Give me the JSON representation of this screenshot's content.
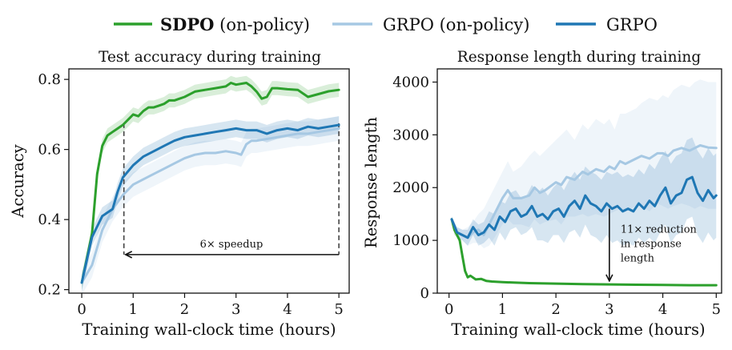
{
  "legend": [
    {
      "label_bold": "SDPO",
      "label": " (on-policy)",
      "color": "#2ca02c"
    },
    {
      "label_bold": "",
      "label": "GRPO (on-policy)",
      "color": "#a6c8e3"
    },
    {
      "label_bold": "",
      "label": "GRPO",
      "color": "#1f77b4"
    }
  ],
  "chart_data": [
    {
      "type": "line",
      "title": "Test accuracy during training",
      "xlabel": "Training wall-clock time (hours)",
      "ylabel": "Accuracy",
      "xlim": [
        -0.25,
        5.2
      ],
      "ylim": [
        0.19,
        0.83
      ],
      "xticks": [
        0,
        1,
        2,
        3,
        4,
        5
      ],
      "xtick_labels": [
        "0",
        "1",
        "2",
        "3",
        "4",
        "5"
      ],
      "yticks": [
        0.2,
        0.4,
        0.6,
        0.8
      ],
      "ytick_labels": [
        "0.2",
        "0.4",
        "0.6",
        "0.8"
      ],
      "annotation": {
        "text": "6× speedup",
        "arrow_from_x": 5.0,
        "arrow_to_x": 0.82,
        "y": 0.3,
        "vlines_x": [
          0.82,
          5.0
        ]
      },
      "series": [
        {
          "name": "SDPO (on-policy)",
          "color": "#2ca02c",
          "x": [
            0,
            0.1,
            0.2,
            0.3,
            0.4,
            0.5,
            0.6,
            0.7,
            0.8,
            0.9,
            1.0,
            1.1,
            1.2,
            1.3,
            1.4,
            1.5,
            1.6,
            1.7,
            1.8,
            1.9,
            2.0,
            2.2,
            2.4,
            2.6,
            2.8,
            2.9,
            3.0,
            3.2,
            3.3,
            3.4,
            3.5,
            3.6,
            3.7,
            3.8,
            4.0,
            4.2,
            4.3,
            4.4,
            4.6,
            4.8,
            5.0
          ],
          "y": [
            0.22,
            0.29,
            0.36,
            0.53,
            0.61,
            0.64,
            0.65,
            0.66,
            0.67,
            0.685,
            0.7,
            0.695,
            0.71,
            0.72,
            0.72,
            0.725,
            0.73,
            0.74,
            0.74,
            0.745,
            0.75,
            0.765,
            0.77,
            0.775,
            0.78,
            0.79,
            0.785,
            0.79,
            0.78,
            0.765,
            0.745,
            0.75,
            0.775,
            0.775,
            0.772,
            0.77,
            0.76,
            0.75,
            0.758,
            0.766,
            0.77
          ],
          "band": 0.02
        },
        {
          "name": "GRPO (on-policy)",
          "color": "#a6c8e3",
          "x": [
            0,
            0.2,
            0.4,
            0.6,
            0.8,
            1.0,
            1.2,
            1.4,
            1.6,
            1.8,
            2.0,
            2.2,
            2.4,
            2.6,
            2.8,
            3.0,
            3.1,
            3.2,
            3.3,
            3.4,
            3.6,
            3.8,
            4.0,
            4.2,
            4.4,
            4.6,
            4.8,
            5.0
          ],
          "y": [
            0.22,
            0.27,
            0.37,
            0.43,
            0.47,
            0.5,
            0.515,
            0.53,
            0.545,
            0.56,
            0.575,
            0.585,
            0.59,
            0.59,
            0.595,
            0.59,
            0.585,
            0.615,
            0.625,
            0.625,
            0.63,
            0.635,
            0.64,
            0.645,
            0.645,
            0.65,
            0.655,
            0.66
          ],
          "band": 0.035
        },
        {
          "name": "GRPO",
          "color": "#1f77b4",
          "x": [
            0,
            0.2,
            0.4,
            0.5,
            0.6,
            0.7,
            0.8,
            1.0,
            1.2,
            1.4,
            1.6,
            1.8,
            2.0,
            2.2,
            2.4,
            2.6,
            2.8,
            3.0,
            3.2,
            3.4,
            3.6,
            3.8,
            4.0,
            4.2,
            4.4,
            4.6,
            4.8,
            5.0
          ],
          "y": [
            0.22,
            0.35,
            0.41,
            0.42,
            0.43,
            0.48,
            0.52,
            0.555,
            0.58,
            0.595,
            0.61,
            0.625,
            0.635,
            0.64,
            0.645,
            0.65,
            0.655,
            0.66,
            0.655,
            0.655,
            0.645,
            0.655,
            0.66,
            0.655,
            0.665,
            0.66,
            0.665,
            0.67
          ],
          "band": 0.025
        }
      ]
    },
    {
      "type": "line",
      "title": "Response length during training",
      "xlabel": "Training wall-clock time (hours)",
      "ylabel": "Response length",
      "xlim": [
        -0.22,
        5.1
      ],
      "ylim": [
        0,
        4250
      ],
      "xticks": [
        0,
        1,
        2,
        3,
        4,
        5
      ],
      "xtick_labels": [
        "0",
        "1",
        "2",
        "3",
        "4",
        "5"
      ],
      "yticks": [
        0,
        1000,
        2000,
        3000,
        4000
      ],
      "ytick_labels": [
        "0",
        "1000",
        "2000",
        "3000",
        "4000"
      ],
      "annotation": {
        "text_lines": [
          "11× reduction",
          "in response",
          "length"
        ],
        "arrow_x": 3.0,
        "arrow_from_y": 1600,
        "arrow_to_y": 200
      },
      "series": [
        {
          "name": "SDPO (on-policy)",
          "color": "#2ca02c",
          "x": [
            0.05,
            0.1,
            0.15,
            0.2,
            0.25,
            0.3,
            0.35,
            0.4,
            0.5,
            0.6,
            0.7,
            0.8,
            1.0,
            1.2,
            1.5,
            2.0,
            2.5,
            3.0,
            3.5,
            4.0,
            4.5,
            5.0
          ],
          "y": [
            1400,
            1200,
            1100,
            1000,
            700,
            420,
            300,
            330,
            260,
            270,
            230,
            220,
            210,
            200,
            190,
            180,
            170,
            165,
            160,
            155,
            150,
            150
          ],
          "band_upper": [
            1450,
            1300,
            1150,
            1050,
            750,
            460,
            330,
            350,
            280,
            290,
            250,
            240,
            225,
            215,
            205,
            195,
            185,
            178,
            172,
            166,
            160,
            160
          ],
          "band_lower": [
            1350,
            1100,
            1050,
            950,
            650,
            380,
            270,
            310,
            240,
            250,
            210,
            200,
            195,
            185,
            175,
            165,
            155,
            152,
            148,
            144,
            140,
            140
          ]
        },
        {
          "name": "GRPO (on-policy)",
          "color": "#a6c8e3",
          "x": [
            0.05,
            0.15,
            0.25,
            0.35,
            0.45,
            0.55,
            0.65,
            0.75,
            0.85,
            1.0,
            1.1,
            1.2,
            1.35,
            1.5,
            1.6,
            1.7,
            1.8,
            2.0,
            2.1,
            2.2,
            2.35,
            2.5,
            2.6,
            2.75,
            2.9,
            3.0,
            3.1,
            3.2,
            3.3,
            3.5,
            3.6,
            3.75,
            3.9,
            4.0,
            4.1,
            4.2,
            4.35,
            4.5,
            4.6,
            4.7,
            4.85,
            5.0
          ],
          "y": [
            1400,
            1150,
            1100,
            1050,
            1150,
            1200,
            1100,
            1300,
            1500,
            1800,
            1950,
            1800,
            1800,
            1850,
            2000,
            1900,
            1950,
            2100,
            2050,
            2200,
            2150,
            2300,
            2250,
            2350,
            2300,
            2400,
            2350,
            2500,
            2450,
            2550,
            2600,
            2550,
            2650,
            2650,
            2600,
            2700,
            2750,
            2700,
            2750,
            2800,
            2760,
            2750
          ],
          "band_upper": [
            1450,
            1250,
            1200,
            1250,
            1350,
            1500,
            1600,
            1800,
            2000,
            2300,
            2500,
            2300,
            2400,
            2600,
            2700,
            2600,
            2700,
            2900,
            3000,
            3100,
            2900,
            3200,
            3100,
            3300,
            3200,
            3300,
            3100,
            3400,
            3400,
            3500,
            3600,
            3700,
            3650,
            3750,
            3700,
            3850,
            3950,
            3900,
            4000,
            4050,
            4000,
            4000
          ],
          "band_lower": [
            1350,
            1050,
            1000,
            900,
            950,
            950,
            850,
            900,
            1050,
            1300,
            1400,
            1300,
            1300,
            1250,
            1400,
            1300,
            1350,
            1400,
            1300,
            1450,
            1450,
            1500,
            1450,
            1500,
            1450,
            1500,
            1550,
            1600,
            1550,
            1650,
            1650,
            1550,
            1700,
            1650,
            1600,
            1650,
            1700,
            1650,
            1600,
            1650,
            1600,
            1600
          ]
        },
        {
          "name": "GRPO",
          "color": "#1f77b4",
          "x": [
            0.05,
            0.15,
            0.25,
            0.35,
            0.45,
            0.55,
            0.65,
            0.75,
            0.85,
            0.95,
            1.05,
            1.15,
            1.25,
            1.35,
            1.45,
            1.55,
            1.65,
            1.75,
            1.85,
            1.95,
            2.05,
            2.15,
            2.25,
            2.35,
            2.45,
            2.55,
            2.65,
            2.75,
            2.85,
            2.95,
            3.05,
            3.15,
            3.25,
            3.35,
            3.45,
            3.55,
            3.65,
            3.75,
            3.85,
            3.95,
            4.05,
            4.15,
            4.25,
            4.35,
            4.45,
            4.55,
            4.65,
            4.75,
            4.85,
            4.95,
            5.0
          ],
          "y": [
            1400,
            1150,
            1100,
            1050,
            1250,
            1100,
            1150,
            1300,
            1200,
            1450,
            1350,
            1550,
            1600,
            1450,
            1500,
            1650,
            1450,
            1500,
            1400,
            1550,
            1600,
            1450,
            1650,
            1750,
            1600,
            1850,
            1700,
            1650,
            1550,
            1700,
            1600,
            1650,
            1550,
            1600,
            1550,
            1700,
            1600,
            1750,
            1650,
            1850,
            2000,
            1700,
            1850,
            1900,
            2150,
            2200,
            1900,
            1750,
            1950,
            1800,
            1850
          ],
          "band_upper": [
            1450,
            1250,
            1200,
            1200,
            1400,
            1300,
            1350,
            1550,
            1500,
            1750,
            1700,
            1900,
            1950,
            1800,
            1850,
            2050,
            1900,
            2000,
            1850,
            2000,
            2100,
            1950,
            2150,
            2300,
            2150,
            2400,
            2300,
            2250,
            2150,
            2300,
            2250,
            2300,
            2200,
            2250,
            2200,
            2350,
            2250,
            2450,
            2350,
            2550,
            2700,
            2450,
            2600,
            2650,
            2900,
            2950,
            2700,
            2550,
            2750,
            2600,
            2650
          ],
          "band_lower": [
            1350,
            1050,
            1000,
            900,
            1100,
            900,
            950,
            1050,
            900,
            1150,
            1000,
            1200,
            1250,
            1100,
            1150,
            1250,
            1000,
            1000,
            950,
            1100,
            1100,
            950,
            1150,
            1200,
            1050,
            1300,
            1100,
            1050,
            950,
            1100,
            950,
            1000,
            900,
            950,
            900,
            1050,
            950,
            1050,
            950,
            1150,
            1300,
            950,
            1100,
            1150,
            1400,
            1450,
            1100,
            950,
            1150,
            1000,
            1050
          ]
        }
      ]
    }
  ]
}
